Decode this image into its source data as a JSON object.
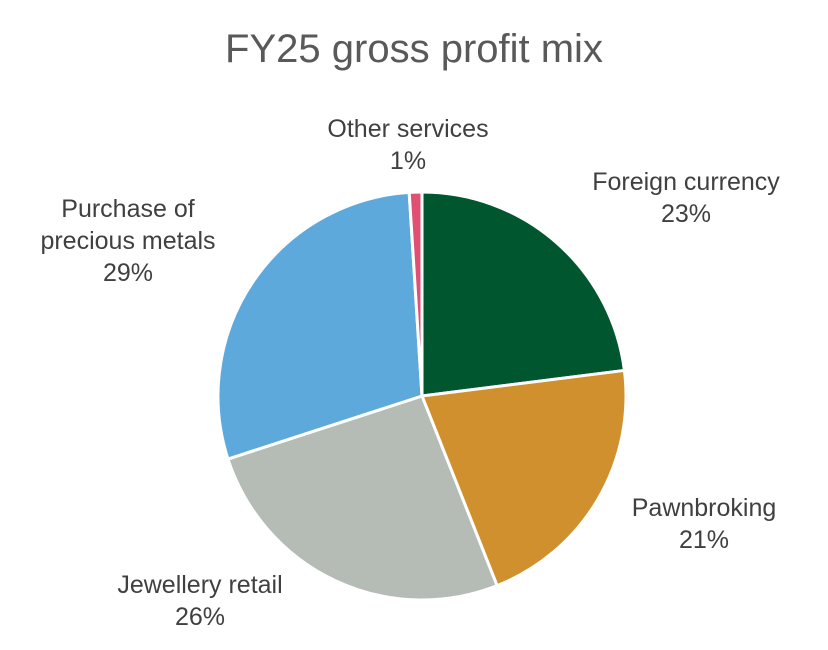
{
  "chart_data": {
    "type": "pie",
    "title": "FY25 gross profit mix",
    "unit": "%",
    "slices": [
      {
        "label_lines": [
          "Foreign currency"
        ],
        "value": 23,
        "value_label": "23%",
        "color": "#00572f"
      },
      {
        "label_lines": [
          "Pawnbroking"
        ],
        "value": 21,
        "value_label": "21%",
        "color": "#d0902e"
      },
      {
        "label_lines": [
          "Jewellery retail"
        ],
        "value": 26,
        "value_label": "26%",
        "color": "#b5bcb6"
      },
      {
        "label_lines": [
          "Purchase of",
          "precious metals"
        ],
        "value": 29,
        "value_label": "29%",
        "color": "#5ea9dc"
      },
      {
        "label_lines": [
          "Other services"
        ],
        "value": 1,
        "value_label": "1%",
        "color": "#e05072"
      }
    ]
  }
}
